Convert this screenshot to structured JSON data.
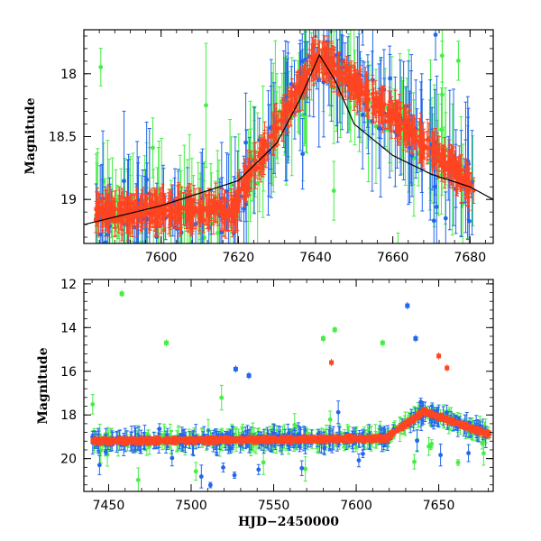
{
  "chart_data": [
    {
      "type": "scatter",
      "panel": "top",
      "title": "",
      "xlabel": "",
      "ylabel": "Magnitude",
      "xlim": [
        7580,
        7686
      ],
      "ylim": [
        19.35,
        17.65
      ],
      "y_inverted": true,
      "x_ticks": [
        7600,
        7620,
        7640,
        7660,
        7680
      ],
      "y_ticks": [
        18,
        18.5,
        19
      ],
      "y_tick_labels": [
        "18",
        "18.5",
        "19"
      ],
      "series": [
        {
          "color": "#2266ee",
          "marker": "filled circle with error bars"
        },
        {
          "color": "#44ee44",
          "marker": "filled circle with error bars"
        },
        {
          "color": "#ff4422",
          "marker": "filled circle with error bars"
        }
      ],
      "model_curve": {
        "color": "#000000",
        "x": [
          7580,
          7600,
          7620,
          7630,
          7636,
          7641,
          7645,
          7650,
          7660,
          7670,
          7680,
          7686
        ],
        "y": [
          19.2,
          19.05,
          18.85,
          18.55,
          18.2,
          17.85,
          18.05,
          18.4,
          18.65,
          18.8,
          18.9,
          19.0
        ]
      }
    },
    {
      "type": "scatter",
      "panel": "bottom",
      "title": "",
      "xlabel": "HJD−2450000",
      "ylabel": "Magnitude",
      "xlim": [
        7435,
        7683
      ],
      "ylim": [
        21.5,
        11.8
      ],
      "y_inverted": true,
      "x_ticks": [
        7450,
        7500,
        7550,
        7600,
        7650
      ],
      "y_ticks": [
        12,
        14,
        16,
        18,
        20
      ],
      "y_tick_labels": [
        "12",
        "14",
        "16",
        "18",
        "20"
      ],
      "series": [
        {
          "color": "#2266ee",
          "marker": "filled circle with error bars"
        },
        {
          "color": "#44ee44",
          "marker": "filled circle with error bars"
        },
        {
          "color": "#ff4422",
          "marker": "filled circle with error bars"
        }
      ],
      "outliers": [
        {
          "x": 7458,
          "y": 12.45,
          "series": 1
        },
        {
          "x": 7485,
          "y": 14.7,
          "series": 1
        },
        {
          "x": 7580,
          "y": 14.5,
          "series": 1
        },
        {
          "x": 7587,
          "y": 14.1,
          "series": 1
        },
        {
          "x": 7616,
          "y": 14.7,
          "series": 1
        },
        {
          "x": 7585,
          "y": 15.6,
          "series": 2
        },
        {
          "x": 7631,
          "y": 13.0,
          "series": 0
        },
        {
          "x": 7636,
          "y": 14.5,
          "series": 0
        },
        {
          "x": 7650,
          "y": 15.3,
          "series": 2
        },
        {
          "x": 7655,
          "y": 15.85,
          "series": 2
        },
        {
          "x": 7527,
          "y": 15.9,
          "series": 0
        },
        {
          "x": 7535,
          "y": 16.2,
          "series": 0
        }
      ]
    }
  ]
}
